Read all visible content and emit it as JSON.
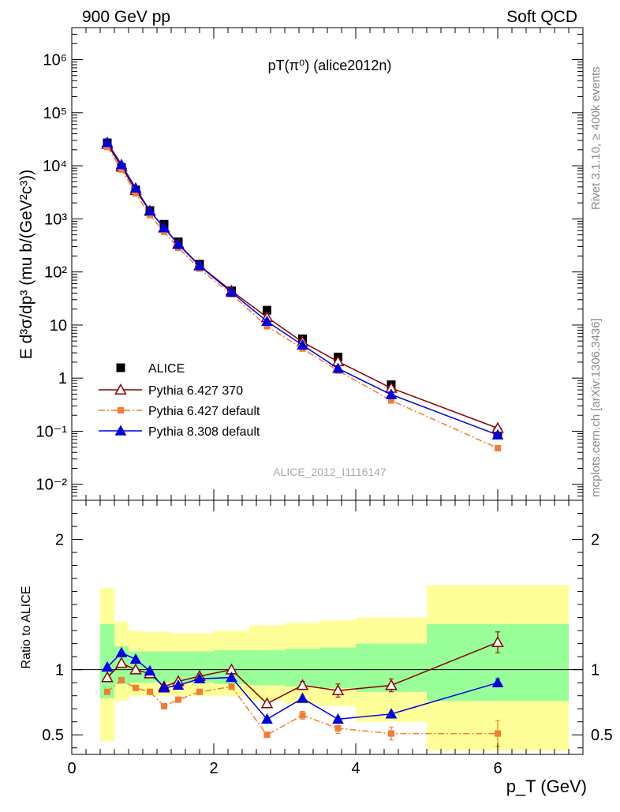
{
  "header": {
    "left": "900 GeV pp",
    "right": "Soft QCD"
  },
  "side_text": {
    "rivet": "Rivet 3.1.10, ≥ 400k events",
    "mcplots": "mcplots.cern.ch [arXiv:1306.3436]"
  },
  "watermark": "ALICE_2012_I1116147",
  "colors": {
    "data": "#000000",
    "p6_370": "#8b0000",
    "p6_default": "#f47c30",
    "p8_default": "#0000e0",
    "band_inner": "#99ff99",
    "band_outer": "#ffff99"
  },
  "chart_data": [
    {
      "type": "scatter",
      "title": "pT(π⁰) (alice2012n)",
      "ylabel": "E d³σ/dp³ (mu b/(GeV²c³))",
      "yscale": "log",
      "xlim": [
        0,
        7.2
      ],
      "ylim": [
        0.005,
        4000000
      ],
      "y_ticks": [
        "10⁻²",
        "10⁻¹",
        "1",
        "10",
        "10²",
        "10³",
        "10⁴",
        "10⁵",
        "10⁶"
      ],
      "legend_position": "middle-left",
      "x": [
        0.5,
        0.7,
        0.9,
        1.1,
        1.3,
        1.5,
        1.8,
        2.25,
        2.75,
        3.25,
        3.75,
        4.5,
        6.0
      ],
      "series": [
        {
          "name": "ALICE",
          "style": "data-square",
          "values": [
            27000,
            9300,
            3500,
            1430,
            790,
            370,
            140,
            44,
            19,
            5.5,
            2.5,
            0.75,
            0.095
          ]
        },
        {
          "name": "Pythia 6.427 370",
          "style": "open-triangle-line",
          "values": [
            25500,
            9600,
            3450,
            1400,
            680,
            340,
            132,
            44,
            14,
            4.8,
            2.05,
            0.65,
            0.114
          ]
        },
        {
          "name": "Pythia 6.427 default",
          "style": "square-dashdot",
          "values": [
            22500,
            8500,
            3020,
            1180,
            570,
            285,
            115,
            38,
            9.5,
            3.6,
            1.38,
            0.38,
            0.048
          ]
        },
        {
          "name": "Pythia 8.308 default",
          "style": "triangle-line",
          "values": [
            27500,
            10500,
            3800,
            1410,
            680,
            330,
            130,
            41.5,
            11.7,
            4.2,
            1.52,
            0.49,
            0.085
          ]
        }
      ]
    },
    {
      "type": "line",
      "ylabel": "Ratio to ALICE",
      "xlabel": "p_T (GeV)",
      "xlim": [
        0,
        7.2
      ],
      "ylim": [
        0.35,
        2.3
      ],
      "x_ticks": [
        "0",
        "2",
        "4",
        "6"
      ],
      "y_ticks": [
        "0.5",
        "1",
        "2"
      ],
      "x": [
        0.5,
        0.7,
        0.9,
        1.1,
        1.3,
        1.5,
        1.8,
        2.25,
        2.75,
        3.25,
        3.75,
        4.5,
        6.0
      ],
      "uncertainty_bins": [
        {
          "lo": 0.4,
          "hi": 0.6,
          "stat_lo": 0.78,
          "stat_hi": 1.35,
          "tot_lo": 0.45,
          "tot_hi": 1.63
        },
        {
          "lo": 0.6,
          "hi": 0.8,
          "stat_lo": 0.89,
          "stat_hi": 1.18,
          "tot_lo": 0.76,
          "tot_hi": 1.37
        },
        {
          "lo": 0.8,
          "hi": 1.0,
          "stat_lo": 0.9,
          "stat_hi": 1.14,
          "tot_lo": 0.8,
          "tot_hi": 1.3
        },
        {
          "lo": 1.0,
          "hi": 1.2,
          "stat_lo": 0.9,
          "stat_hi": 1.14,
          "tot_lo": 0.8,
          "tot_hi": 1.29
        },
        {
          "lo": 1.2,
          "hi": 1.4,
          "stat_lo": 0.9,
          "stat_hi": 1.14,
          "tot_lo": 0.8,
          "tot_hi": 1.29
        },
        {
          "lo": 1.4,
          "hi": 1.6,
          "stat_lo": 0.9,
          "stat_hi": 1.14,
          "tot_lo": 0.8,
          "tot_hi": 1.28
        },
        {
          "lo": 1.6,
          "hi": 2.0,
          "stat_lo": 0.9,
          "stat_hi": 1.14,
          "tot_lo": 0.8,
          "tot_hi": 1.28
        },
        {
          "lo": 2.0,
          "hi": 2.5,
          "stat_lo": 0.89,
          "stat_hi": 1.15,
          "tot_lo": 0.8,
          "tot_hi": 1.3
        },
        {
          "lo": 2.5,
          "hi": 3.0,
          "stat_lo": 0.88,
          "stat_hi": 1.15,
          "tot_lo": 0.76,
          "tot_hi": 1.34
        },
        {
          "lo": 3.0,
          "hi": 3.5,
          "stat_lo": 0.87,
          "stat_hi": 1.16,
          "tot_lo": 0.74,
          "tot_hi": 1.36
        },
        {
          "lo": 3.5,
          "hi": 4.0,
          "stat_lo": 0.86,
          "stat_hi": 1.17,
          "tot_lo": 0.72,
          "tot_hi": 1.38
        },
        {
          "lo": 4.0,
          "hi": 5.0,
          "stat_lo": 0.83,
          "stat_hi": 1.2,
          "tot_lo": 0.6,
          "tot_hi": 1.4
        },
        {
          "lo": 5.0,
          "hi": 7.0,
          "stat_lo": 0.76,
          "stat_hi": 1.35,
          "tot_lo": 0.38,
          "tot_hi": 1.65
        }
      ],
      "series": [
        {
          "name": "Pythia 6.427 370",
          "values": [
            0.94,
            1.05,
            1.0,
            0.97,
            0.87,
            0.91,
            0.95,
            1.0,
            0.74,
            0.88,
            0.84,
            0.88,
            1.21
          ],
          "errors": [
            0,
            0,
            0,
            0,
            0,
            0,
            0,
            0,
            0,
            0.03,
            0.05,
            0.05,
            0.08
          ]
        },
        {
          "name": "Pythia 6.427 default",
          "values": [
            0.83,
            0.92,
            0.86,
            0.83,
            0.72,
            0.77,
            0.83,
            0.87,
            0.5,
            0.65,
            0.55,
            0.51,
            0.51
          ],
          "errors": [
            0,
            0,
            0,
            0,
            0,
            0,
            0,
            0,
            0.02,
            0.03,
            0.04,
            0.05,
            0.1
          ]
        },
        {
          "name": "Pythia 8.308 default",
          "values": [
            1.02,
            1.13,
            1.08,
            0.99,
            0.86,
            0.88,
            0.93,
            0.94,
            0.62,
            0.78,
            0.62,
            0.66,
            0.9
          ],
          "errors": [
            0,
            0,
            0,
            0,
            0,
            0,
            0,
            0,
            0,
            0,
            0,
            0.01,
            0.03
          ]
        }
      ]
    }
  ]
}
